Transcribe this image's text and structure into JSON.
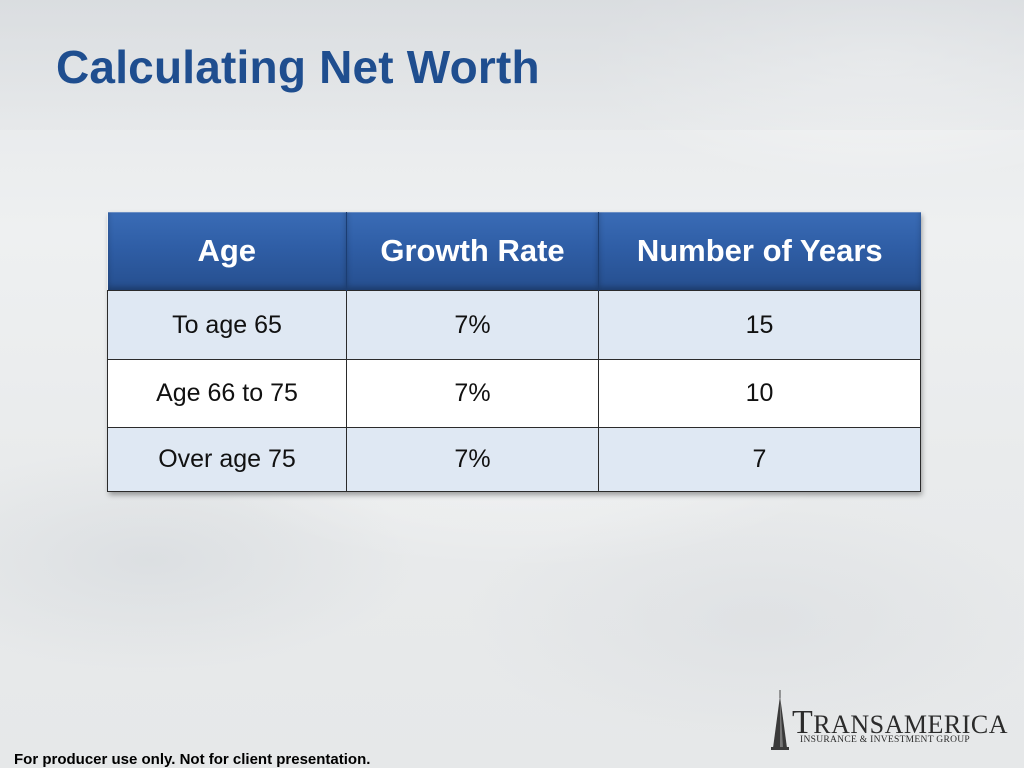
{
  "slide": {
    "title": "Calculating Net Worth",
    "footer": "For producer use only. Not for client presentation."
  },
  "table": {
    "headers": [
      "Age",
      "Growth Rate",
      "Number of Years"
    ],
    "rows": [
      [
        "To age 65",
        "7%",
        "15"
      ],
      [
        "Age 66 to 75",
        "7%",
        "10"
      ],
      [
        "Over age 75",
        "7%",
        "7"
      ]
    ]
  },
  "logo": {
    "icon": "pyramid-tower-icon",
    "name_initial": "T",
    "name_rest": "RANSAMERICA",
    "tagline": "INSURANCE & INVESTMENT GROUP"
  },
  "colors": {
    "title": "#1f4e8f",
    "header_bg": "#2f5ea6",
    "row_shade": "#dfe8f3"
  }
}
